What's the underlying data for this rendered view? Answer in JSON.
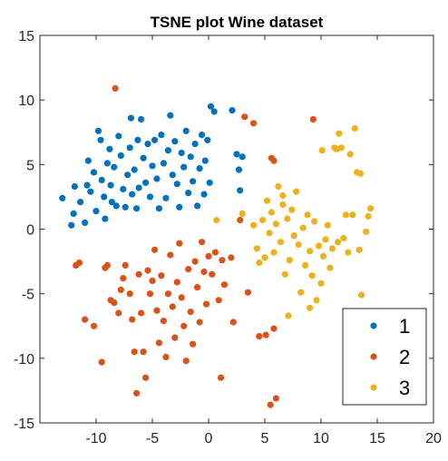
{
  "chart_data": {
    "type": "scatter",
    "title": "TSNE plot Wine dataset",
    "xlabel": "",
    "ylabel": "",
    "xlim": [
      -15,
      20
    ],
    "ylim": [
      -15,
      15
    ],
    "xticks": [
      -10,
      -5,
      0,
      5,
      10,
      15,
      20
    ],
    "yticks": [
      -15,
      -10,
      -5,
      0,
      5,
      10,
      15
    ],
    "grid": false,
    "legend_position": "bottom-right",
    "series": [
      {
        "name": "1",
        "color": "#0072BD",
        "points": [
          [
            -13.0,
            2.4
          ],
          [
            -12.2,
            0.3
          ],
          [
            -12.0,
            1.2
          ],
          [
            -11.9,
            3.3
          ],
          [
            -11.4,
            2.1
          ],
          [
            -11.0,
            0.5
          ],
          [
            -10.8,
            3.4
          ],
          [
            -10.7,
            5.3
          ],
          [
            -10.5,
            2.9
          ],
          [
            -10.2,
            4.4
          ],
          [
            -10.0,
            1.4
          ],
          [
            -9.8,
            7.6
          ],
          [
            -9.6,
            6.9
          ],
          [
            -9.5,
            3.8
          ],
          [
            -9.3,
            2.5
          ],
          [
            -9.2,
            0.8
          ],
          [
            -9.0,
            5.1
          ],
          [
            -8.8,
            6.2
          ],
          [
            -8.7,
            3.4
          ],
          [
            -8.6,
            2.1
          ],
          [
            -8.4,
            4.8
          ],
          [
            -8.2,
            1.8
          ],
          [
            -8.0,
            7.2
          ],
          [
            -7.8,
            5.7
          ],
          [
            -7.6,
            3.1
          ],
          [
            -7.4,
            1.7
          ],
          [
            -7.2,
            4.2
          ],
          [
            -7.0,
            6.3
          ],
          [
            -6.9,
            8.6
          ],
          [
            -6.8,
            2.7
          ],
          [
            -6.6,
            4.6
          ],
          [
            -6.4,
            1.6
          ],
          [
            -6.3,
            6.9
          ],
          [
            -6.2,
            3.2
          ],
          [
            -6.0,
            8.5
          ],
          [
            -5.8,
            5.5
          ],
          [
            -5.6,
            3.6
          ],
          [
            -5.4,
            6.6
          ],
          [
            -5.2,
            2.5
          ],
          [
            -5.0,
            4.9
          ],
          [
            -4.8,
            6.9
          ],
          [
            -4.6,
            3.9
          ],
          [
            -4.4,
            1.6
          ],
          [
            -4.2,
            7.3
          ],
          [
            -4.0,
            5.1
          ],
          [
            -3.8,
            2.4
          ],
          [
            -3.6,
            6.1
          ],
          [
            -3.4,
            8.8
          ],
          [
            -3.2,
            4.2
          ],
          [
            -3.0,
            6.8
          ],
          [
            -2.8,
            3.5
          ],
          [
            -2.6,
            1.7
          ],
          [
            -2.4,
            5.9
          ],
          [
            -2.2,
            4.8
          ],
          [
            -2.0,
            7.6
          ],
          [
            -1.8,
            2.8
          ],
          [
            -1.6,
            5.6
          ],
          [
            -1.4,
            3.7
          ],
          [
            -1.2,
            6.6
          ],
          [
            -1.0,
            1.8
          ],
          [
            -0.8,
            4.7
          ],
          [
            -0.6,
            7.3
          ],
          [
            -0.4,
            2.7
          ],
          [
            -0.3,
            5.3
          ],
          [
            -0.1,
            6.9
          ],
          [
            0.1,
            3.6
          ],
          [
            0.2,
            9.5
          ],
          [
            0.5,
            9.1
          ],
          [
            2.1,
            9.2
          ],
          [
            2.5,
            5.8
          ],
          [
            2.7,
            4.6
          ],
          [
            3.0,
            5.6
          ],
          [
            2.8,
            3.0
          ]
        ]
      },
      {
        "name": "2",
        "color": "#D95319",
        "points": [
          [
            -11.8,
            -2.8
          ],
          [
            -11.5,
            -2.6
          ],
          [
            -11.0,
            -7.0
          ],
          [
            -10.2,
            -7.5
          ],
          [
            -9.5,
            -10.3
          ],
          [
            -9.2,
            -3.0
          ],
          [
            -9.0,
            -2.8
          ],
          [
            -8.7,
            -5.5
          ],
          [
            -8.4,
            -5.7
          ],
          [
            -8.0,
            -6.5
          ],
          [
            -7.8,
            -4.7
          ],
          [
            -7.6,
            -3.8
          ],
          [
            -7.4,
            -2.8
          ],
          [
            -7.0,
            -5.0
          ],
          [
            -6.8,
            -7.0
          ],
          [
            -6.6,
            -9.5
          ],
          [
            -6.4,
            -12.7
          ],
          [
            -6.2,
            -3.5
          ],
          [
            -6.0,
            -6.5
          ],
          [
            -5.8,
            -9.5
          ],
          [
            -5.6,
            -11.5
          ],
          [
            -5.4,
            -3.2
          ],
          [
            -5.2,
            -5.0
          ],
          [
            -5.0,
            -4.0
          ],
          [
            -4.8,
            -1.6
          ],
          [
            -4.6,
            -6.3
          ],
          [
            -4.4,
            -8.8
          ],
          [
            -4.2,
            -3.6
          ],
          [
            -4.0,
            -7.1
          ],
          [
            -3.8,
            -9.9
          ],
          [
            -3.6,
            -5.0
          ],
          [
            -3.4,
            -2.0
          ],
          [
            -3.2,
            -6.0
          ],
          [
            -3.0,
            -8.4
          ],
          [
            -2.8,
            -4.1
          ],
          [
            -2.6,
            -1.1
          ],
          [
            -2.4,
            -5.3
          ],
          [
            -2.2,
            -7.5
          ],
          [
            -2.0,
            -10.2
          ],
          [
            -1.8,
            -3.1
          ],
          [
            -1.6,
            -6.4
          ],
          [
            -1.4,
            -8.9
          ],
          [
            -1.2,
            -2.5
          ],
          [
            -1.0,
            -4.5
          ],
          [
            -0.8,
            -7.2
          ],
          [
            -0.6,
            -1.0
          ],
          [
            -0.4,
            -3.3
          ],
          [
            -0.2,
            -5.8
          ],
          [
            0.0,
            -2.1
          ],
          [
            0.3,
            -3.5
          ],
          [
            0.6,
            -1.8
          ],
          [
            0.9,
            -5.5
          ],
          [
            1.2,
            -2.4
          ],
          [
            1.4,
            -4.3
          ],
          [
            1.1,
            -11.5
          ],
          [
            2.2,
            -7.2
          ],
          [
            2.8,
            0.7
          ],
          [
            3.5,
            -4.9
          ],
          [
            4.0,
            8.2
          ],
          [
            4.5,
            -8.3
          ],
          [
            5.1,
            -8.2
          ],
          [
            5.5,
            -13.6
          ],
          [
            6.0,
            -13.1
          ],
          [
            5.6,
            5.5
          ],
          [
            5.8,
            5.3
          ],
          [
            5.8,
            -7.7
          ],
          [
            3.2,
            8.7
          ],
          [
            -8.3,
            10.9
          ],
          [
            9.3,
            8.5
          ],
          [
            2.0,
            -2.2
          ]
        ]
      },
      {
        "name": "3",
        "color": "#EDB120",
        "points": [
          [
            0.7,
            0.7
          ],
          [
            3.0,
            1.2
          ],
          [
            4.0,
            0.3
          ],
          [
            4.3,
            -1.5
          ],
          [
            4.5,
            -2.6
          ],
          [
            4.8,
            0.7
          ],
          [
            5.0,
            -2.2
          ],
          [
            5.2,
            2.2
          ],
          [
            5.4,
            -0.3
          ],
          [
            5.6,
            1.3
          ],
          [
            5.8,
            -1.8
          ],
          [
            6.0,
            0.4
          ],
          [
            6.2,
            3.3
          ],
          [
            6.4,
            -1.0
          ],
          [
            6.6,
            1.9
          ],
          [
            6.8,
            -3.5
          ],
          [
            7.0,
            0.8
          ],
          [
            7.2,
            -2.4
          ],
          [
            7.4,
            1.5
          ],
          [
            7.6,
            -0.5
          ],
          [
            7.8,
            2.9
          ],
          [
            8.0,
            -1.2
          ],
          [
            8.2,
            -4.9
          ],
          [
            8.4,
            0.1
          ],
          [
            8.6,
            -2.8
          ],
          [
            8.8,
            1.1
          ],
          [
            9.0,
            -1.7
          ],
          [
            9.2,
            -3.6
          ],
          [
            9.4,
            0.6
          ],
          [
            9.6,
            -5.5
          ],
          [
            9.8,
            -1.3
          ],
          [
            10.0,
            -4.2
          ],
          [
            10.2,
            -2.1
          ],
          [
            10.4,
            -0.8
          ],
          [
            10.6,
            0.3
          ],
          [
            10.8,
            -3.0
          ],
          [
            11.0,
            -1.5
          ],
          [
            11.2,
            6.3
          ],
          [
            11.4,
            6.2
          ],
          [
            11.6,
            7.4
          ],
          [
            11.8,
            6.3
          ],
          [
            12.0,
            -0.7
          ],
          [
            12.2,
            1.1
          ],
          [
            12.4,
            -1.8
          ],
          [
            12.6,
            5.8
          ],
          [
            12.8,
            1.1
          ],
          [
            13.0,
            7.8
          ],
          [
            13.2,
            4.4
          ],
          [
            13.4,
            -1.6
          ],
          [
            13.5,
            4.3
          ],
          [
            13.6,
            -5.1
          ],
          [
            14.0,
            -0.2
          ],
          [
            14.2,
            1.0
          ],
          [
            14.4,
            1.6
          ],
          [
            11.5,
            -1.0
          ],
          [
            10.1,
            6.1
          ],
          [
            7.1,
            -6.7
          ],
          [
            6.6,
            2.6
          ],
          [
            9.0,
            -6.1
          ]
        ]
      }
    ]
  }
}
